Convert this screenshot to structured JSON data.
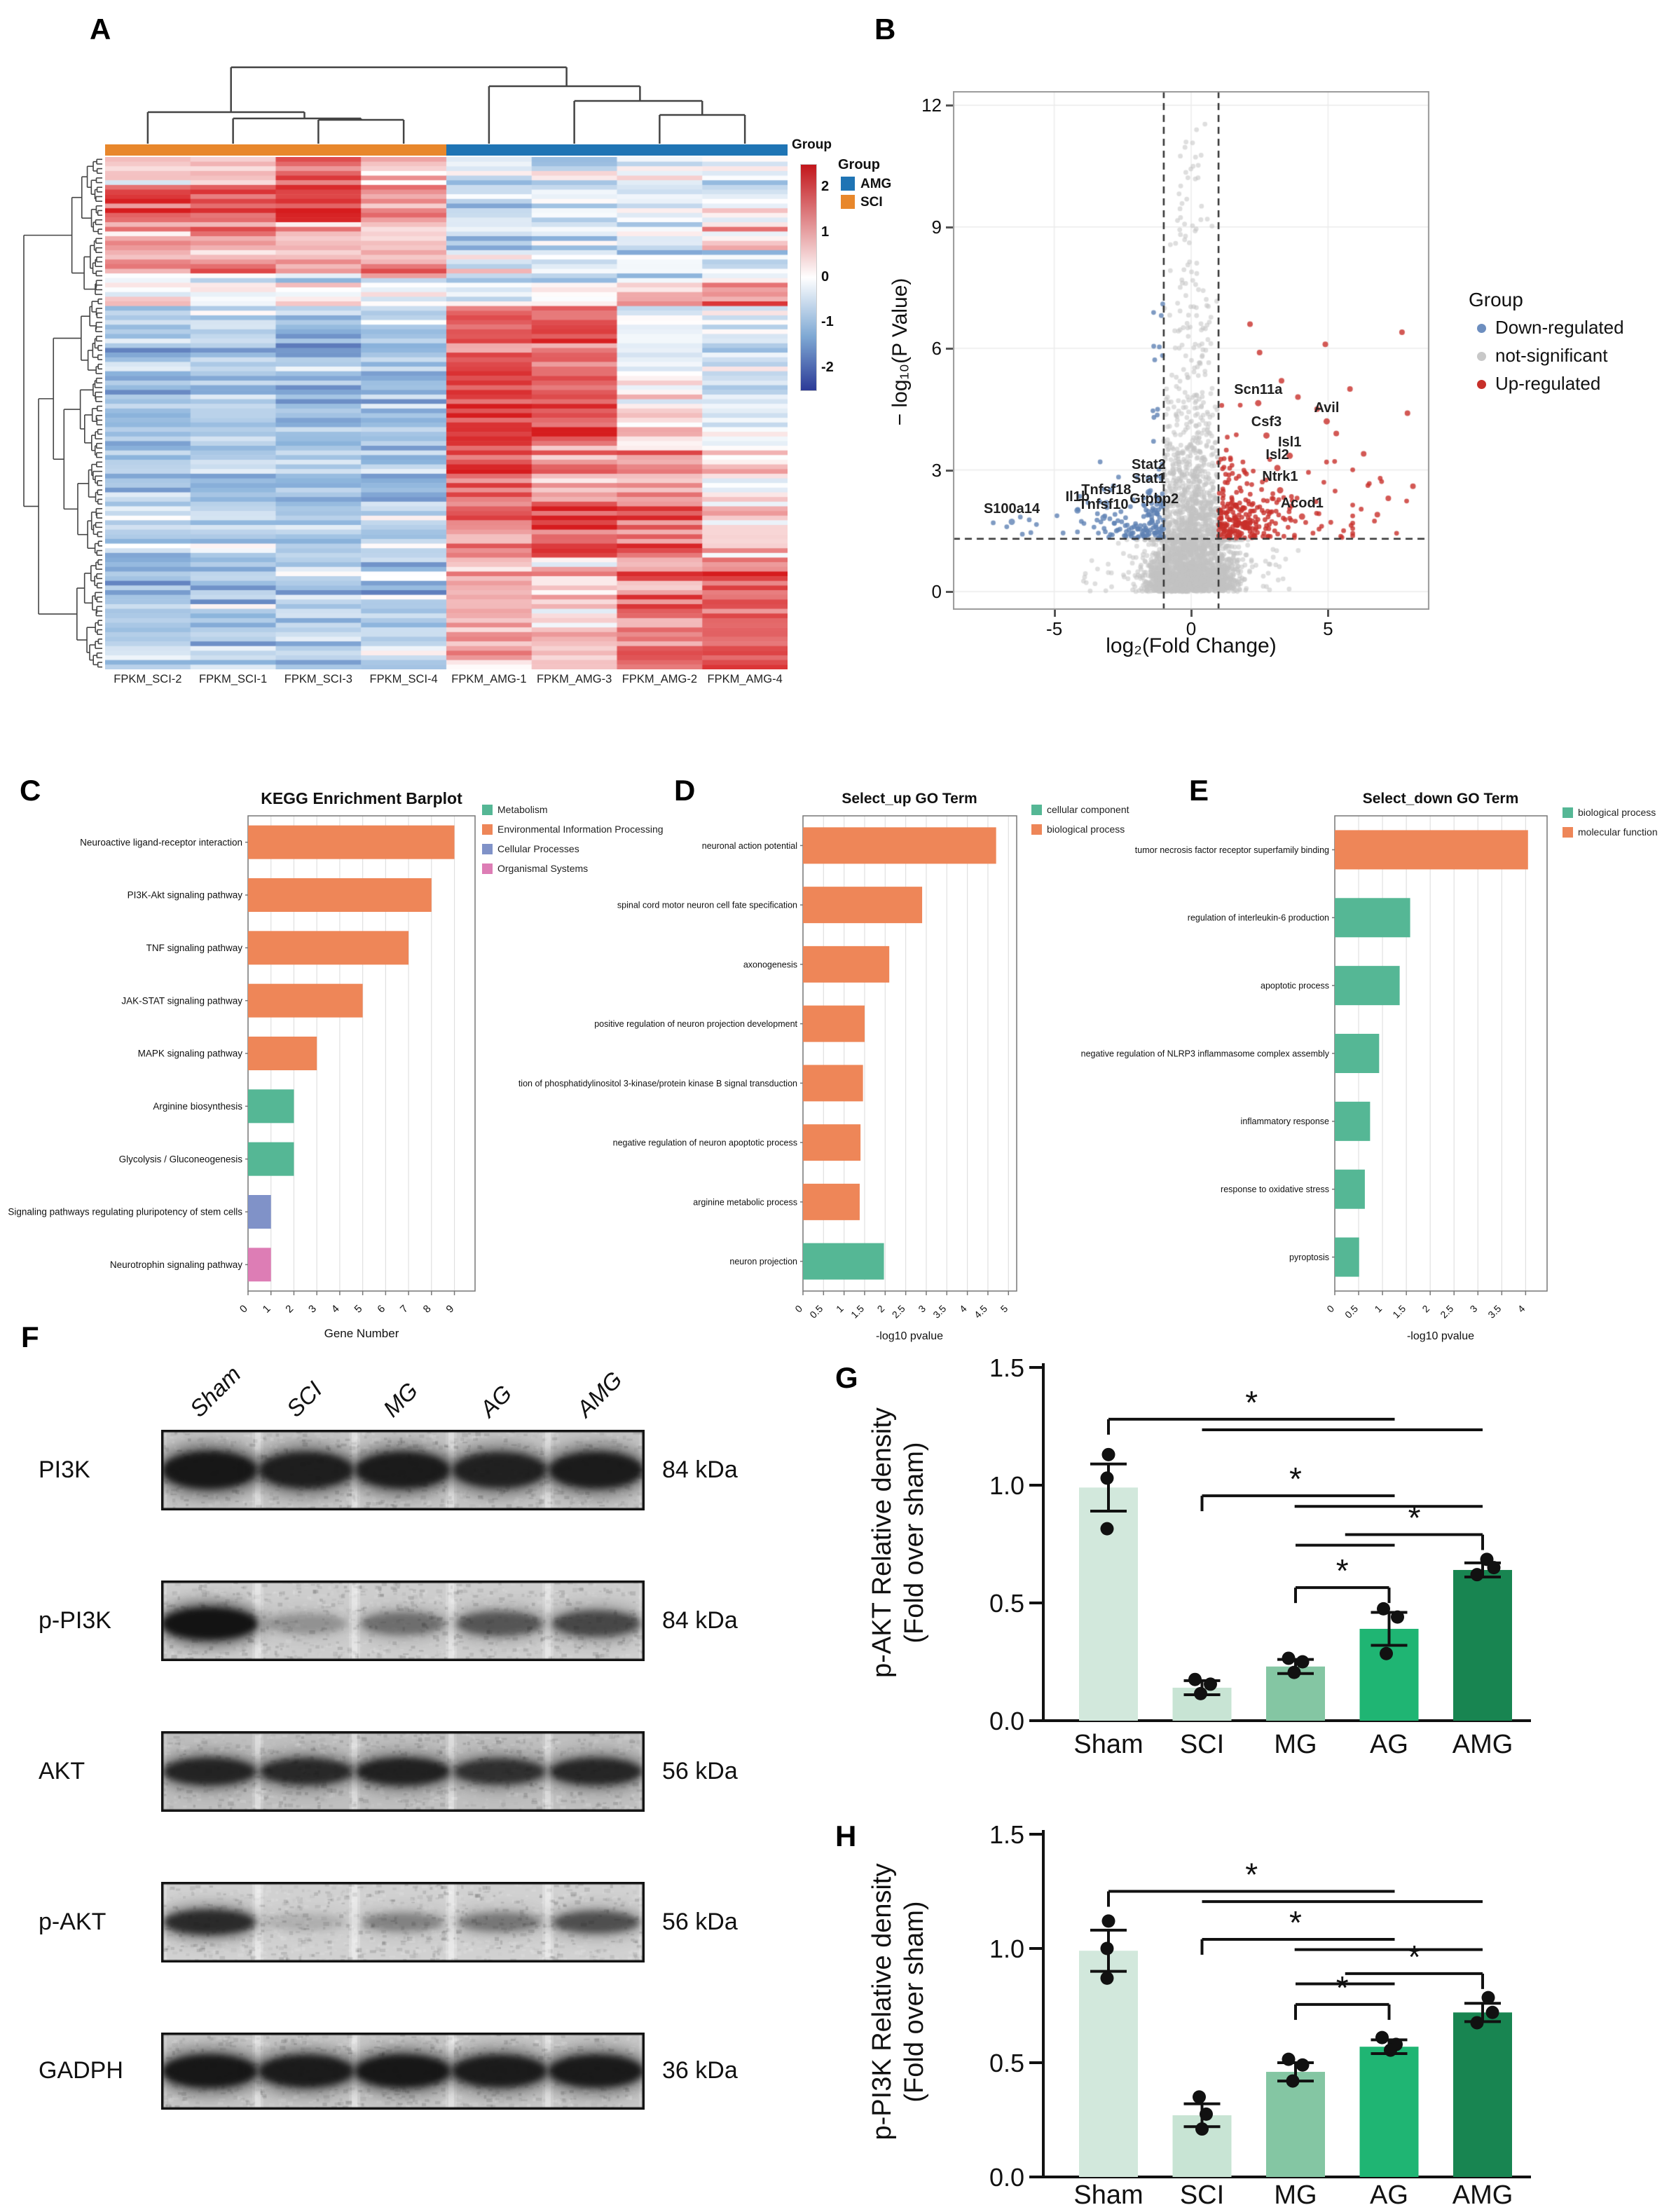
{
  "chart_data": [
    {
      "panel": "A",
      "type": "heatmap",
      "samples": [
        "FPKM_SCI-2",
        "FPKM_SCI-1",
        "FPKM_SCI-3",
        "FPKM_SCI-4",
        "FPKM_AMG-1",
        "FPKM_AMG-3",
        "FPKM_AMG-2",
        "FPKM_AMG-4"
      ],
      "annotation_label": "Group",
      "annotation_groups": [
        {
          "name": "SCI",
          "color": "#E8872B",
          "span": [
            0,
            4
          ]
        },
        {
          "name": "AMG",
          "color": "#1F74B4",
          "span": [
            4,
            8
          ]
        }
      ],
      "legend": {
        "title": "Group",
        "items": [
          {
            "label": "AMG",
            "color": "#1F74B4"
          },
          {
            "label": "SCI",
            "color": "#E8872B"
          }
        ]
      },
      "colorbar": {
        "ticks": [
          "2",
          "1",
          "0",
          "-1",
          "-2"
        ],
        "range": [
          -2.5,
          2.5
        ],
        "max_color": "#C2161B",
        "mid_color": "#FFFFFF",
        "min_color": "#2B3A97"
      },
      "rows": 110,
      "seed": 11,
      "blocks": [
        [
          0,
          6,
          [
            0.6,
            0.3,
            1.6,
            0.4,
            -0.4,
            -0.5,
            -0.2,
            -0.1
          ],
          0.7
        ],
        [
          6,
          14,
          [
            1.7,
            1.5,
            1.8,
            0.8,
            -0.6,
            -0.7,
            -0.4,
            -0.3
          ],
          0.5
        ],
        [
          14,
          20,
          [
            1.0,
            1.2,
            0.9,
            0.6,
            -0.5,
            -0.4,
            0.0,
            0.7
          ],
          0.6
        ],
        [
          20,
          26,
          [
            0.7,
            0.9,
            0.6,
            0.8,
            -0.3,
            -0.4,
            -0.5,
            -0.4
          ],
          0.6
        ],
        [
          26,
          32,
          [
            -0.2,
            -0.1,
            -0.3,
            -0.2,
            -0.5,
            -0.3,
            0.4,
            1.0
          ],
          0.6
        ],
        [
          32,
          46,
          [
            -0.8,
            -0.6,
            -0.9,
            -0.7,
            1.7,
            1.4,
            -0.2,
            -0.4
          ],
          0.5
        ],
        [
          46,
          62,
          [
            -0.9,
            -0.8,
            -1.0,
            -0.8,
            2.0,
            1.8,
            0.3,
            -0.2
          ],
          0.4
        ],
        [
          62,
          74,
          [
            -0.7,
            -0.9,
            -0.8,
            -0.9,
            1.7,
            1.0,
            0.9,
            0.4
          ],
          0.5
        ],
        [
          74,
          86,
          [
            -0.8,
            -0.7,
            -0.9,
            -0.6,
            1.3,
            1.6,
            1.4,
            0.5
          ],
          0.5
        ],
        [
          86,
          110,
          [
            -0.9,
            -0.8,
            -0.8,
            -0.7,
            0.7,
            0.5,
            1.3,
            1.6
          ],
          0.6
        ]
      ]
    },
    {
      "panel": "B",
      "type": "scatter",
      "xlabel": "log₂(Fold Change)",
      "ylabel": "− log₁₀(P Value)",
      "xlim": [
        -8.7,
        8.7
      ],
      "ylim": [
        -0.45,
        12.35
      ],
      "xticks": [
        "-5",
        "0",
        "5"
      ],
      "xtick_vals": [
        -5,
        0,
        5
      ],
      "yticks": [
        "0",
        "3",
        "6",
        "9",
        "12"
      ],
      "ytick_vals": [
        0,
        3,
        6,
        9,
        12
      ],
      "vlines": [
        -1,
        1
      ],
      "hline": 1.3,
      "legend": {
        "title": "Group",
        "items": [
          {
            "label": "Down-regulated",
            "color": "#6D8EBF"
          },
          {
            "label": "not-significant",
            "color": "#C8C8C8"
          },
          {
            "label": "Up-regulated",
            "color": "#C7302A"
          }
        ]
      },
      "gene_labels": [
        {
          "gene": "S100a14",
          "x": -6.55,
          "y": 1.72,
          "side": "down"
        },
        {
          "gene": "Il1b",
          "x": -4.15,
          "y": 2.0,
          "side": "down"
        },
        {
          "gene": "Tnfsf18",
          "x": -3.1,
          "y": 2.18,
          "side": "down"
        },
        {
          "gene": "Tnfsf10",
          "x": -3.2,
          "y": 1.82,
          "side": "down"
        },
        {
          "gene": "Stat2",
          "x": -1.55,
          "y": 2.8,
          "side": "down"
        },
        {
          "gene": "Stat1",
          "x": -1.55,
          "y": 2.45,
          "side": "down"
        },
        {
          "gene": "Gtpbp2",
          "x": -1.35,
          "y": 1.95,
          "side": "down"
        },
        {
          "gene": "Scn11a",
          "x": 2.45,
          "y": 4.65,
          "side": "up"
        },
        {
          "gene": "Csf3",
          "x": 2.75,
          "y": 3.85,
          "side": "up"
        },
        {
          "gene": "Avil",
          "x": 4.95,
          "y": 4.2,
          "side": "up"
        },
        {
          "gene": "Isl1",
          "x": 3.6,
          "y": 3.35,
          "side": "up"
        },
        {
          "gene": "Isl2",
          "x": 3.15,
          "y": 3.05,
          "side": "up"
        },
        {
          "gene": "Ntrk1",
          "x": 3.25,
          "y": 2.5,
          "side": "up"
        },
        {
          "gene": "Acod1",
          "x": 4.05,
          "y": 1.85,
          "side": "up"
        }
      ],
      "points": {
        "seed": 7,
        "n_gray": 2600,
        "n_blue": 140,
        "n_red": 270,
        "high_red": [
          [
            2.15,
            6.6
          ],
          [
            2.5,
            5.9
          ],
          [
            3.3,
            5.2
          ],
          [
            4.9,
            6.1
          ],
          [
            7.7,
            6.4
          ],
          [
            5.8,
            5.0
          ],
          [
            4.6,
            4.5
          ],
          [
            3.9,
            4.8
          ],
          [
            7.9,
            4.4
          ],
          [
            6.3,
            3.4
          ],
          [
            6.8,
            1.9
          ],
          [
            7.2,
            2.3
          ],
          [
            8.1,
            2.6
          ],
          [
            5.3,
            3.9
          ]
        ]
      }
    },
    {
      "panel": "C",
      "type": "bar",
      "orientation": "horizontal",
      "title": "KEGG Enrichment Barplot",
      "xlabel": "Gene Number",
      "categories": [
        "Neuroactive ligand-receptor interaction",
        "PI3K-Akt signaling pathway",
        "TNF signaling pathway",
        "JAK-STAT signaling pathway",
        "MAPK signaling pathway",
        "Arginine biosynthesis",
        "Glycolysis / Gluconeogenesis",
        "Signaling pathways regulating pluripotency of stem cells",
        "Neurotrophin signaling pathway"
      ],
      "values": [
        9,
        8,
        7,
        5,
        3,
        2,
        2,
        1,
        1
      ],
      "bar_colors": [
        "#EE8658",
        "#EE8658",
        "#EE8658",
        "#EE8658",
        "#EE8658",
        "#55B795",
        "#55B795",
        "#8092C8",
        "#DD7DB5"
      ],
      "xticks": [
        "0",
        "1",
        "2",
        "3",
        "4",
        "5",
        "6",
        "7",
        "8",
        "9"
      ],
      "xtick_vals": [
        0,
        1,
        2,
        3,
        4,
        5,
        6,
        7,
        8,
        9
      ],
      "xmax": 9.9,
      "legend": {
        "items": [
          {
            "label": "Metabolism",
            "color": "#55B795"
          },
          {
            "label": "Environmental Information Processing",
            "color": "#EE8658"
          },
          {
            "label": "Cellular Processes",
            "color": "#8092C8"
          },
          {
            "label": "Organismal Systems",
            "color": "#DD7DB5"
          }
        ]
      }
    },
    {
      "panel": "D",
      "type": "bar",
      "orientation": "horizontal",
      "title": "Select_up GO  Term",
      "xlabel": "-log10 pvalue",
      "categories": [
        "neuronal action potential",
        "spinal cord motor neuron cell fate specification",
        "axonogenesis",
        "positive regulation of neuron projection development",
        "tion of phosphatidylinositol 3-kinase/protein kinase B signal transduction",
        "negative regulation of neuron apoptotic process",
        "arginine metabolic process",
        "neuron projection"
      ],
      "values": [
        4.7,
        2.9,
        2.1,
        1.5,
        1.46,
        1.4,
        1.38,
        1.97
      ],
      "bar_colors": [
        "#EE8658",
        "#EE8658",
        "#EE8658",
        "#EE8658",
        "#EE8658",
        "#EE8658",
        "#EE8658",
        "#55B795"
      ],
      "xticks": [
        "0",
        "0.5",
        "1",
        "1.5",
        "2",
        "2.5",
        "3",
        "3.5",
        "4",
        "4.5",
        "5"
      ],
      "xtick_vals": [
        0,
        0.5,
        1,
        1.5,
        2,
        2.5,
        3,
        3.5,
        4,
        4.5,
        5
      ],
      "xmax": 5.2,
      "legend": {
        "items": [
          {
            "label": "cellular component",
            "color": "#55B795"
          },
          {
            "label": "biological process",
            "color": "#EE8658"
          }
        ]
      }
    },
    {
      "panel": "E",
      "type": "bar",
      "orientation": "horizontal",
      "title": "Select_down GO  Term",
      "xlabel": "-log10 pvalue",
      "categories": [
        "tumor necrosis factor receptor superfamily binding",
        "regulation of interleukin-6 production",
        "apoptotic process",
        "negative regulation of NLRP3 inflammasome complex assembly",
        "inflammatory response",
        "response to oxidative stress",
        "pyroptosis"
      ],
      "values": [
        4.05,
        1.58,
        1.36,
        0.93,
        0.74,
        0.63,
        0.51
      ],
      "bar_colors": [
        "#EE8658",
        "#55B795",
        "#55B795",
        "#55B795",
        "#55B795",
        "#55B795",
        "#55B795"
      ],
      "xticks": [
        "0",
        "0.5",
        "1",
        "1.5",
        "2",
        "2.5",
        "3",
        "3.5",
        "4"
      ],
      "xtick_vals": [
        0,
        0.5,
        1,
        1.5,
        2,
        2.5,
        3,
        3.5,
        4
      ],
      "xmax": 4.45,
      "legend": {
        "items": [
          {
            "label": "biological process",
            "color": "#55B795"
          },
          {
            "label": "molecular function",
            "color": "#EE8658"
          }
        ]
      }
    },
    {
      "panel": "G",
      "type": "bar",
      "ylabel_line1": "p-AKT Relative density",
      "ylabel_line2": "(Fold over sham)",
      "categories": [
        "Sham",
        "SCI",
        "MG",
        "AG",
        "AMG"
      ],
      "values": [
        0.99,
        0.14,
        0.23,
        0.39,
        0.64
      ],
      "errors": [
        0.1,
        0.03,
        0.03,
        0.07,
        0.03
      ],
      "dots": [
        [
          [
            0,
            1.13
          ],
          [
            -2,
            1.03
          ],
          [
            -2,
            0.815
          ]
        ],
        [
          [
            -10,
            0.175
          ],
          [
            12,
            0.155
          ],
          [
            -2,
            0.115
          ]
        ],
        [
          [
            -10,
            0.265
          ],
          [
            10,
            0.25
          ],
          [
            -2,
            0.205
          ]
        ],
        [
          [
            -8,
            0.475
          ],
          [
            12,
            0.44
          ],
          [
            -4,
            0.285
          ]
        ],
        [
          [
            6,
            0.685
          ],
          [
            16,
            0.65
          ],
          [
            -8,
            0.62
          ]
        ]
      ],
      "yticks": [
        "0.0",
        "0.5",
        "1.0",
        "1.5"
      ],
      "ytick_vals": [
        0,
        0.5,
        1.0,
        1.5
      ],
      "ylim": [
        0,
        1.5
      ],
      "bar_colors": [
        "#D2E8DC",
        "#C8E4D4",
        "#84C6A3",
        "#1FB573",
        "#188551"
      ],
      "sig_label": "*",
      "brackets": [
        {
          "y": 1.28,
          "x1": 0,
          "x2": 3.06,
          "ticks": [
            0
          ],
          "star": 1.53,
          "l2y": 1.235,
          "l2x1": 1.0,
          "l2x2": 4.0
        },
        {
          "y": 0.955,
          "x1": 1,
          "x2": 3.06,
          "ticks": [
            1
          ],
          "star": 2.0,
          "l2y": 0.91,
          "l2x1": 1.99,
          "l2x2": 4.0
        },
        {
          "y": 0.79,
          "x1": 2.53,
          "x2": 4,
          "ticks": [
            4
          ],
          "star": 3.27,
          "l2y": 0.745,
          "l2x1": 2.0,
          "l2x2": 3.06
        },
        {
          "y": 0.565,
          "x1": 2,
          "x2": 3,
          "ticks": [
            2,
            3
          ],
          "star": 2.5
        }
      ]
    },
    {
      "panel": "H",
      "type": "bar",
      "ylabel_line1": "p-PI3K Relative density",
      "ylabel_line2": "(Fold over sham)",
      "categories": [
        "Sham",
        "SCI",
        "MG",
        "AG",
        "AMG"
      ],
      "values": [
        0.99,
        0.27,
        0.46,
        0.57,
        0.72
      ],
      "errors": [
        0.09,
        0.05,
        0.04,
        0.03,
        0.04
      ],
      "dots": [
        [
          [
            0,
            1.12
          ],
          [
            -2,
            1.0
          ],
          [
            -2,
            0.87
          ]
        ],
        [
          [
            -4,
            0.35
          ],
          [
            6,
            0.275
          ],
          [
            0,
            0.21
          ]
        ],
        [
          [
            -10,
            0.515
          ],
          [
            10,
            0.49
          ],
          [
            -4,
            0.42
          ]
        ],
        [
          [
            -10,
            0.61
          ],
          [
            10,
            0.58
          ],
          [
            2,
            0.555
          ]
        ],
        [
          [
            8,
            0.785
          ],
          [
            14,
            0.72
          ],
          [
            -8,
            0.675
          ]
        ]
      ],
      "yticks": [
        "0.0",
        "0.5",
        "1.0",
        "1.5"
      ],
      "ytick_vals": [
        0,
        0.5,
        1.0,
        1.5
      ],
      "ylim": [
        0,
        1.5
      ],
      "bar_colors": [
        "#D2E8DC",
        "#C8E4D4",
        "#84C6A3",
        "#1FB573",
        "#188551"
      ],
      "sig_label": "*",
      "brackets": [
        {
          "y": 1.25,
          "x1": 0,
          "x2": 3.06,
          "ticks": [
            0
          ],
          "star": 1.53,
          "l2y": 1.205,
          "l2x1": 1.0,
          "l2x2": 4.0
        },
        {
          "y": 1.04,
          "x1": 1,
          "x2": 3.06,
          "ticks": [
            1
          ],
          "star": 2.0,
          "l2y": 0.995,
          "l2x1": 1.99,
          "l2x2": 4.0
        },
        {
          "y": 0.89,
          "x1": 2.53,
          "x2": 4,
          "ticks": [
            4
          ],
          "star": 3.27,
          "l2y": 0.845,
          "l2x1": 2.0,
          "l2x2": 3.06
        },
        {
          "y": 0.755,
          "x1": 2,
          "x2": 3,
          "ticks": [
            2,
            3
          ],
          "star": 2.5
        }
      ]
    }
  ],
  "panel_f": {
    "label": "F",
    "lanes": [
      "Sham",
      "SCI",
      "MG",
      "AG",
      "AMG"
    ],
    "blots": [
      {
        "protein": "PI3K",
        "kda": "84 kDa",
        "intensities": [
          0.95,
          0.88,
          0.9,
          0.85,
          0.9
        ],
        "band_h": 52,
        "bg": 205
      },
      {
        "protein": "p-PI3K",
        "kda": "84 kDa",
        "intensities": [
          1.0,
          0.22,
          0.38,
          0.5,
          0.58
        ],
        "band_h": 44,
        "bg": 215
      },
      {
        "protein": "AKT",
        "kda": "56 kDa",
        "intensities": [
          0.82,
          0.78,
          0.85,
          0.72,
          0.8
        ],
        "band_h": 40,
        "bg": 200
      },
      {
        "protein": "p-AKT",
        "kda": "56 kDa",
        "intensities": [
          0.78,
          0.12,
          0.3,
          0.35,
          0.55
        ],
        "band_h": 38,
        "bg": 220
      },
      {
        "protein": "GADPH",
        "kda": "36 kDa",
        "intensities": [
          0.95,
          0.9,
          0.95,
          0.9,
          0.92
        ],
        "band_h": 46,
        "bg": 208
      }
    ]
  }
}
